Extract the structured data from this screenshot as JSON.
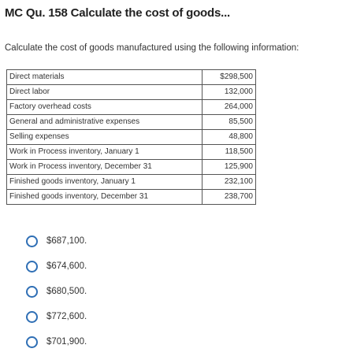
{
  "question": {
    "title": "MC Qu. 158 Calculate the cost of goods...",
    "prompt": "Calculate the cost of goods manufactured using the following information:"
  },
  "table": {
    "rows": [
      {
        "label": "Direct materials",
        "value": "$298,500"
      },
      {
        "label": "Direct labor",
        "value": "132,000"
      },
      {
        "label": "Factory overhead costs",
        "value": "264,000"
      },
      {
        "label": "General and administrative expenses",
        "value": "85,500"
      },
      {
        "label": "Selling expenses",
        "value": "48,800"
      },
      {
        "label": "Work in Process inventory, January 1",
        "value": "118,500"
      },
      {
        "label": "Work in Process inventory, December 31",
        "value": "125,900"
      },
      {
        "label": "Finished goods inventory, January 1",
        "value": "232,100"
      },
      {
        "label": "Finished goods inventory, December 31",
        "value": "238,700"
      }
    ]
  },
  "options": [
    {
      "label": "$687,100."
    },
    {
      "label": "$674,600."
    },
    {
      "label": "$680,500."
    },
    {
      "label": "$772,600."
    },
    {
      "label": "$701,900."
    }
  ],
  "colors": {
    "radio_border": "#2f6fb5",
    "table_border": "#555555"
  }
}
